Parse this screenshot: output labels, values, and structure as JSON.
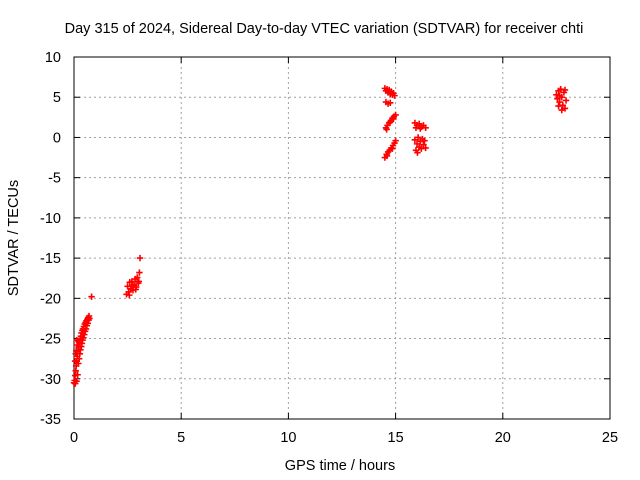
{
  "chart_data": {
    "type": "scatter",
    "title": "Day 315 of 2024, Sidereal Day-to-day VTEC variation (SDTVAR) for receiver chti",
    "xlabel": "GPS time / hours",
    "ylabel": "SDTVAR / TECUs",
    "xlim": [
      0,
      25
    ],
    "ylim": [
      -35,
      10
    ],
    "xticks": [
      0,
      5,
      10,
      15,
      20,
      25
    ],
    "yticks": [
      -35,
      -30,
      -25,
      -20,
      -15,
      -10,
      -5,
      0,
      5,
      10
    ],
    "grid": true,
    "marker": "+",
    "colors": {
      "points": "#ff0000",
      "grid": "#a0a0a0",
      "axis": "#000000"
    },
    "series": [
      {
        "name": "SDTVAR",
        "points": [
          [
            0.0,
            -30.5
          ],
          [
            0.03,
            -30.2
          ],
          [
            0.05,
            -29.6
          ],
          [
            0.06,
            -30.6
          ],
          [
            0.08,
            -29.0
          ],
          [
            0.1,
            -28.4
          ],
          [
            0.12,
            -30.3
          ],
          [
            0.13,
            -27.8
          ],
          [
            0.15,
            -27.2
          ],
          [
            0.17,
            -29.5
          ],
          [
            0.18,
            -26.6
          ],
          [
            0.2,
            -28.1
          ],
          [
            0.22,
            -26.0
          ],
          [
            0.24,
            -27.5
          ],
          [
            0.25,
            -25.5
          ],
          [
            0.27,
            -26.9
          ],
          [
            0.29,
            -25.0
          ],
          [
            0.3,
            -26.4
          ],
          [
            0.32,
            -24.7
          ],
          [
            0.34,
            -26.0
          ],
          [
            0.35,
            -24.3
          ],
          [
            0.37,
            -25.6
          ],
          [
            0.39,
            -24.0
          ],
          [
            0.4,
            -25.2
          ],
          [
            0.42,
            -23.8
          ],
          [
            0.44,
            -24.9
          ],
          [
            0.46,
            -23.5
          ],
          [
            0.48,
            -24.5
          ],
          [
            0.5,
            -23.2
          ],
          [
            0.52,
            -24.1
          ],
          [
            0.54,
            -23.0
          ],
          [
            0.56,
            -23.8
          ],
          [
            0.58,
            -22.8
          ],
          [
            0.6,
            -23.4
          ],
          [
            0.62,
            -22.6
          ],
          [
            0.64,
            -23.1
          ],
          [
            0.66,
            -22.4
          ],
          [
            0.68,
            -22.7
          ],
          [
            0.7,
            -22.2
          ],
          [
            0.72,
            -22.5
          ],
          [
            0.05,
            -27.8
          ],
          [
            0.1,
            -26.5
          ],
          [
            0.15,
            -25.8
          ],
          [
            0.2,
            -25.3
          ],
          [
            0.08,
            -26.9
          ],
          [
            0.12,
            -25.2
          ],
          [
            0.82,
            -19.8
          ],
          [
            2.45,
            -19.5
          ],
          [
            2.5,
            -18.5
          ],
          [
            2.55,
            -19.2
          ],
          [
            2.6,
            -18.0
          ],
          [
            2.65,
            -18.8
          ],
          [
            2.7,
            -17.9
          ],
          [
            2.75,
            -19.0
          ],
          [
            2.8,
            -18.3
          ],
          [
            2.85,
            -17.6
          ],
          [
            2.9,
            -18.6
          ],
          [
            2.95,
            -17.4
          ],
          [
            3.0,
            -18.1
          ],
          [
            3.05,
            -16.8
          ],
          [
            2.58,
            -19.6
          ],
          [
            2.72,
            -18.4
          ],
          [
            2.88,
            -18.9
          ],
          [
            3.02,
            -17.9
          ],
          [
            3.08,
            -15.0
          ],
          [
            14.5,
            6.1
          ],
          [
            14.55,
            5.8
          ],
          [
            14.6,
            6.0
          ],
          [
            14.65,
            5.6
          ],
          [
            14.7,
            5.9
          ],
          [
            14.75,
            5.4
          ],
          [
            14.8,
            5.7
          ],
          [
            14.85,
            5.3
          ],
          [
            14.9,
            5.5
          ],
          [
            14.95,
            5.2
          ],
          [
            14.55,
            4.4
          ],
          [
            14.65,
            4.2
          ],
          [
            14.75,
            4.3
          ],
          [
            14.55,
            1.2
          ],
          [
            14.62,
            1.5
          ],
          [
            14.7,
            1.8
          ],
          [
            14.78,
            2.1
          ],
          [
            14.85,
            2.4
          ],
          [
            14.92,
            2.6
          ],
          [
            15.0,
            2.8
          ],
          [
            14.58,
            1.0
          ],
          [
            14.74,
            1.9
          ],
          [
            14.9,
            2.3
          ],
          [
            14.5,
            -2.5
          ],
          [
            14.58,
            -2.1
          ],
          [
            14.65,
            -1.8
          ],
          [
            14.72,
            -1.6
          ],
          [
            14.8,
            -1.3
          ],
          [
            14.88,
            -1.0
          ],
          [
            14.95,
            -0.7
          ],
          [
            15.0,
            -0.4
          ],
          [
            14.6,
            -2.3
          ],
          [
            14.85,
            -1.4
          ],
          [
            15.9,
            1.8
          ],
          [
            16.0,
            1.5
          ],
          [
            16.1,
            1.7
          ],
          [
            16.2,
            1.3
          ],
          [
            16.3,
            1.5
          ],
          [
            16.4,
            1.2
          ],
          [
            15.95,
            1.2
          ],
          [
            16.15,
            1.1
          ],
          [
            15.9,
            -0.3
          ],
          [
            16.0,
            -0.8
          ],
          [
            16.05,
            0.0
          ],
          [
            16.1,
            -1.2
          ],
          [
            16.15,
            -0.5
          ],
          [
            16.2,
            -1.4
          ],
          [
            16.3,
            -0.9
          ],
          [
            16.4,
            -1.3
          ],
          [
            16.35,
            -0.4
          ],
          [
            15.95,
            -1.6
          ],
          [
            16.25,
            -0.2
          ],
          [
            16.02,
            -1.9
          ],
          [
            22.5,
            5.3
          ],
          [
            22.55,
            4.8
          ],
          [
            22.6,
            5.8
          ],
          [
            22.65,
            4.4
          ],
          [
            22.7,
            6.0
          ],
          [
            22.75,
            5.0
          ],
          [
            22.8,
            4.0
          ],
          [
            22.85,
            5.6
          ],
          [
            22.9,
            3.6
          ],
          [
            22.95,
            4.6
          ],
          [
            22.6,
            3.9
          ],
          [
            22.75,
            3.4
          ],
          [
            22.9,
            5.9
          ],
          [
            22.65,
            5.2
          ]
        ]
      }
    ]
  }
}
